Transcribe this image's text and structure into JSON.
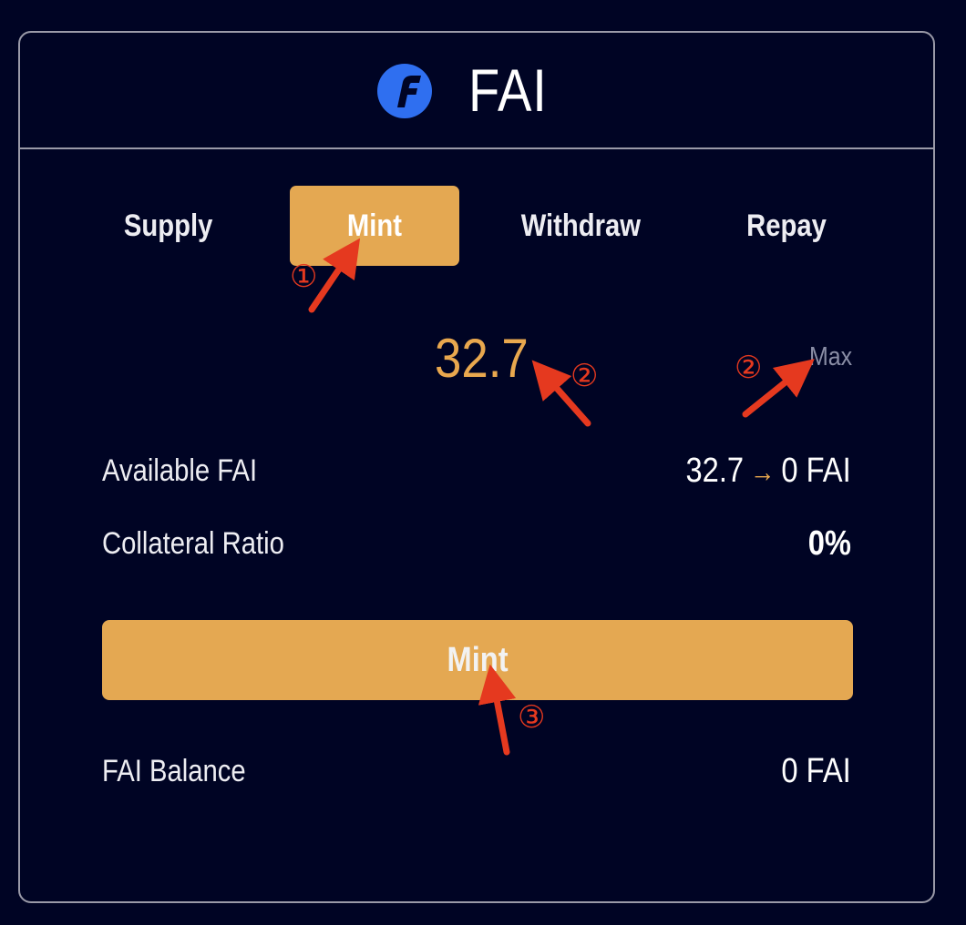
{
  "header": {
    "title": "FAI",
    "logo_icon": "fai-logo-icon",
    "logo_color": "#2f6ff0"
  },
  "tabs": [
    {
      "label": "Supply",
      "active": false
    },
    {
      "label": "Mint",
      "active": true
    },
    {
      "label": "Withdraw",
      "active": false
    },
    {
      "label": "Repay",
      "active": false
    }
  ],
  "input": {
    "amount": "32.7",
    "max_label": "Max"
  },
  "rows": {
    "available": {
      "label": "Available FAI",
      "from": "32.7",
      "to": "0 FAI"
    },
    "collateral": {
      "label": "Collateral Ratio",
      "value": "0%"
    },
    "balance": {
      "label": "FAI Balance",
      "value": "0 FAI"
    }
  },
  "action": {
    "label": "Mint"
  },
  "annotations": [
    {
      "number": "①",
      "target": "tab-mint"
    },
    {
      "number": "②",
      "target": "amount"
    },
    {
      "number": "②",
      "target": "max"
    },
    {
      "number": "③",
      "target": "mint-button"
    }
  ],
  "colors": {
    "accent": "#e4a852",
    "background": "#000424",
    "annotation": "#e5391f"
  }
}
